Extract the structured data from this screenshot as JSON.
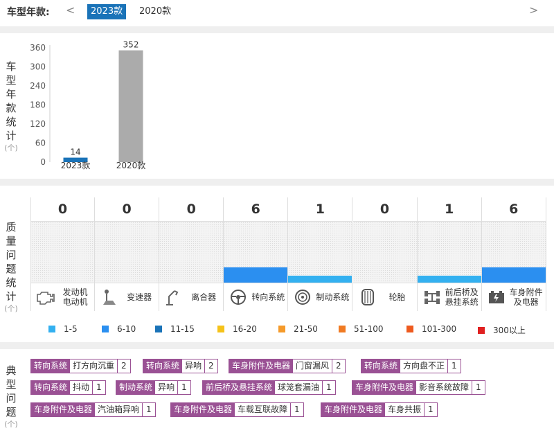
{
  "header": {
    "title": "车型年款:",
    "prev": "<",
    "next": ">",
    "tabs": [
      {
        "label": "2023款",
        "active": true
      },
      {
        "label": "2020款",
        "active": false
      }
    ]
  },
  "year_stats": {
    "side_label": [
      "车",
      "型",
      "年",
      "款",
      "统",
      "计"
    ],
    "unit": "(个)"
  },
  "chart_data": {
    "type": "bar",
    "categories": [
      "2023款",
      "2020款"
    ],
    "values": [
      14,
      352
    ],
    "colors": [
      "#1a73b8",
      "#ababab"
    ],
    "ylim": [
      0,
      360
    ],
    "yticks": [
      0,
      60,
      120,
      180,
      240,
      300,
      360
    ],
    "grid": false
  },
  "quality": {
    "side_label": [
      "质",
      "量",
      "问",
      "题",
      "统",
      "计"
    ],
    "unit": "(个)",
    "systems": [
      {
        "label": "发动机\n电动机",
        "count": "0",
        "icon": "engine-icon",
        "bar_fraction": 0,
        "color": ""
      },
      {
        "label": "变速器",
        "count": "0",
        "icon": "gear-shifter-icon",
        "bar_fraction": 0,
        "color": ""
      },
      {
        "label": "离合器",
        "count": "0",
        "icon": "clutch-pedal-icon",
        "bar_fraction": 0,
        "color": ""
      },
      {
        "label": "转向系统",
        "count": "6",
        "icon": "steering-wheel-icon",
        "bar_fraction": 0.25,
        "color": "#2b8ff0"
      },
      {
        "label": "制动系统",
        "count": "1",
        "icon": "brake-disc-icon",
        "bar_fraction": 0.11,
        "color": "#33b0f0"
      },
      {
        "label": "轮胎",
        "count": "0",
        "icon": "tire-icon",
        "bar_fraction": 0,
        "color": ""
      },
      {
        "label": "前后桥及\n悬挂系统",
        "count": "1",
        "icon": "axle-icon",
        "bar_fraction": 0.11,
        "color": "#33b0f0"
      },
      {
        "label": "车身附件\n及电器",
        "count": "6",
        "icon": "battery-icon",
        "bar_fraction": 0.25,
        "color": "#2b8ff0"
      }
    ],
    "legend": [
      {
        "label": "1-5",
        "color": "#33b0f0"
      },
      {
        "label": "6-10",
        "color": "#2b8ff0"
      },
      {
        "label": "11-15",
        "color": "#1a73b8"
      },
      {
        "label": "16-20",
        "color": "#f5c219"
      },
      {
        "label": "21-50",
        "color": "#f59a2a"
      },
      {
        "label": "51-100",
        "color": "#f07a22"
      },
      {
        "label": "101-300",
        "color": "#ee5a1e"
      },
      {
        "label": "300以上",
        "color": "#e02020"
      }
    ]
  },
  "typical": {
    "side_label": [
      "典",
      "型",
      "问",
      "题"
    ],
    "unit": "(个)",
    "rows": [
      [
        {
          "category": "转向系统",
          "issue": "打方向沉重",
          "count": "2"
        },
        {
          "category": "转向系统",
          "issue": "异响",
          "count": "2"
        },
        {
          "category": "车身附件及电器",
          "issue": "门窗漏风",
          "count": "2"
        },
        {
          "category": "转向系统",
          "issue": "方向盘不正",
          "count": "1"
        }
      ],
      [
        {
          "category": "转向系统",
          "issue": "抖动",
          "count": "1"
        },
        {
          "category": "制动系统",
          "issue": "异响",
          "count": "1"
        },
        {
          "category": "前后桥及悬挂系统",
          "issue": "球笼套漏油",
          "count": "1"
        },
        {
          "category": "车身附件及电器",
          "issue": "影音系统故障",
          "count": "1"
        }
      ],
      [
        {
          "category": "车身附件及电器",
          "issue": "汽油箱异响",
          "count": "1"
        },
        {
          "category": "车身附件及电器",
          "issue": "车载互联故障",
          "count": "1"
        },
        {
          "category": "车身附件及电器",
          "issue": "车身共振",
          "count": "1"
        }
      ]
    ]
  }
}
